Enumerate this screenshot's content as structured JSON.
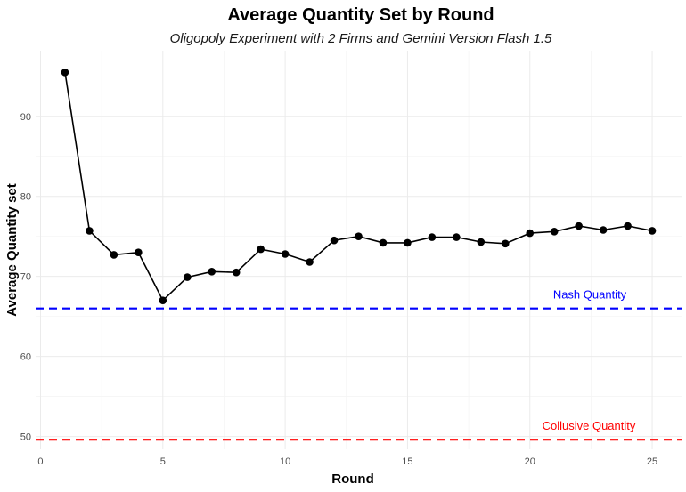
{
  "chart_data": {
    "type": "line",
    "title": "Average Quantity Set by Round",
    "subtitle": "Oligopoly Experiment with 2 Firms and Gemini Version Flash 1.5",
    "xlabel": "Round",
    "ylabel": "Average Quantity set",
    "xlim": [
      -0.2,
      26.2
    ],
    "ylim": [
      48.4,
      98.2
    ],
    "x_ticks": [
      0,
      5,
      10,
      15,
      20,
      25
    ],
    "y_ticks": [
      50,
      60,
      70,
      80,
      90
    ],
    "grid": true,
    "series": [
      {
        "color": "#000000",
        "x": [
          1,
          2,
          3,
          4,
          5,
          6,
          7,
          8,
          9,
          10,
          11,
          12,
          13,
          14,
          15,
          16,
          17,
          18,
          19,
          20,
          21,
          22,
          23,
          24,
          25
        ],
        "y": [
          95.5,
          75.7,
          72.7,
          73.0,
          67.0,
          69.9,
          70.6,
          70.5,
          73.4,
          72.8,
          71.8,
          74.5,
          75.0,
          74.2,
          74.2,
          74.9,
          74.9,
          74.3,
          74.1,
          75.4,
          75.6,
          76.3,
          75.8,
          76.3,
          75.7
        ]
      }
    ],
    "reference_lines": [
      {
        "label": "Nash Quantity",
        "y": 66.0,
        "color": "#0000ff",
        "style": "dashed"
      },
      {
        "label": "Collusive Quantity",
        "y": 49.6,
        "color": "#ff0000",
        "style": "dashed"
      }
    ]
  }
}
